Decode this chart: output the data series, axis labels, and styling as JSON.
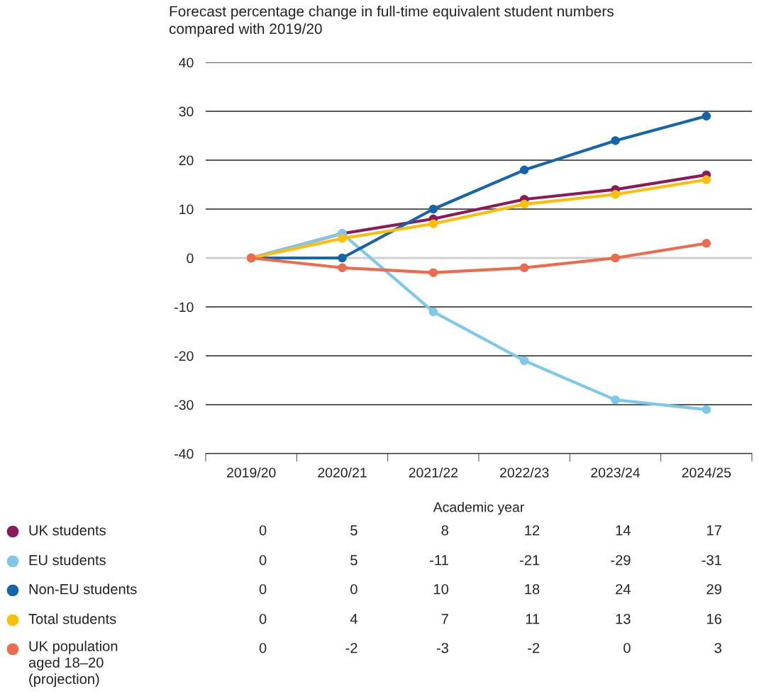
{
  "chart_data": {
    "type": "line",
    "title": "Forecast percentage change in full-time equivalent student numbers\ncompared with 2019/20",
    "xlabel": "Academic year",
    "categories": [
      "2019/20",
      "2020/21",
      "2021/22",
      "2022/23",
      "2023/24",
      "2024/25"
    ],
    "series": [
      {
        "name": "UK students",
        "color": "#8b1a5a",
        "values": [
          0,
          5,
          8,
          12,
          14,
          17
        ]
      },
      {
        "name": "EU students",
        "color": "#7ec8eb",
        "values": [
          0,
          5,
          -11,
          -21,
          -29,
          -31
        ]
      },
      {
        "name": "Non-EU students",
        "color": "#1565a8",
        "values": [
          0,
          0,
          10,
          18,
          24,
          29
        ]
      },
      {
        "name": "Total students",
        "color": "#fbbf07",
        "values": [
          0,
          4,
          7,
          11,
          13,
          16
        ]
      },
      {
        "name": "UK population\naged 18–20\n(projection)",
        "color": "#ec6b4c",
        "values": [
          0,
          -2,
          -3,
          -2,
          0,
          3
        ]
      }
    ],
    "ylim": [
      -40,
      40
    ],
    "yticks": [
      -40,
      -30,
      -20,
      -10,
      0,
      10,
      20,
      30,
      40
    ],
    "ref_lines": [
      {
        "axis": "y",
        "value": 0,
        "color": "#d0d0d0"
      }
    ],
    "grid": "y",
    "legend": "bottom left",
    "marker": "circle",
    "line_style": "solid",
    "data_labels": true
  }
}
